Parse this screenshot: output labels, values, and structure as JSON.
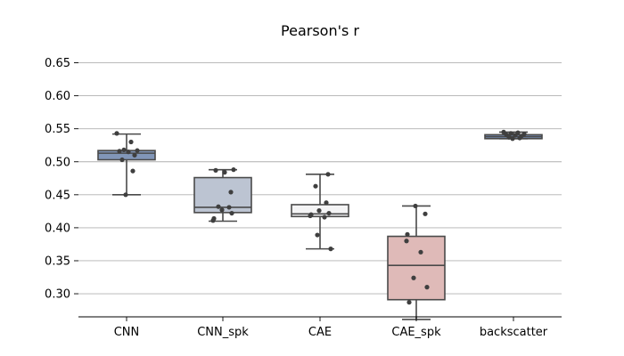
{
  "chart_data": {
    "type": "box",
    "title": "Pearson's r",
    "xlabel": "",
    "ylabel": "",
    "ylim": [
      0.265,
      0.675
    ],
    "yticks": [
      0.3,
      0.35,
      0.4,
      0.45,
      0.5,
      0.55,
      0.6,
      0.65
    ],
    "ytick_labels": [
      "0.30",
      "0.35",
      "0.40",
      "0.45",
      "0.50",
      "0.55",
      "0.60",
      "0.65"
    ],
    "grid": "horizontal",
    "categories": [
      "CNN",
      "CNN_spk",
      "CAE",
      "CAE_spk",
      "backscatter"
    ],
    "colors": [
      "#8196b8",
      "#bcc4d2",
      "#f4f4f5",
      "#dfbab8",
      "#7992bb"
    ],
    "boxes": [
      {
        "category": "CNN",
        "whisker_low": 0.45,
        "q1": 0.503,
        "median": 0.513,
        "q3": 0.517,
        "whisker_high": 0.542
      },
      {
        "category": "CNN_spk",
        "whisker_low": 0.41,
        "q1": 0.423,
        "median": 0.431,
        "q3": 0.476,
        "whisker_high": 0.488
      },
      {
        "category": "CAE",
        "whisker_low": 0.368,
        "q1": 0.417,
        "median": 0.421,
        "q3": 0.435,
        "whisker_high": 0.481
      },
      {
        "category": "CAE_spk",
        "whisker_low": 0.261,
        "q1": 0.291,
        "median": 0.343,
        "q3": 0.387,
        "whisker_high": 0.433
      },
      {
        "category": "backscatter",
        "whisker_low": 0.535,
        "q1": 0.535,
        "median": 0.538,
        "q3": 0.541,
        "whisker_high": 0.545
      }
    ],
    "points": [
      [
        0.543,
        0.53,
        0.518,
        0.517,
        0.516,
        0.515,
        0.51,
        0.503,
        0.486,
        0.45
      ],
      [
        0.488,
        0.487,
        0.484,
        0.454,
        0.432,
        0.431,
        0.427,
        0.422,
        0.414,
        0.411
      ],
      [
        0.481,
        0.463,
        0.438,
        0.426,
        0.422,
        0.42,
        0.418,
        0.416,
        0.389,
        0.368
      ],
      [
        0.433,
        0.421,
        0.39,
        0.38,
        0.363,
        0.324,
        0.31,
        0.287
      ],
      [
        0.545,
        0.544,
        0.543,
        0.542,
        0.541,
        0.54,
        0.539,
        0.537,
        0.536,
        0.535
      ]
    ]
  }
}
